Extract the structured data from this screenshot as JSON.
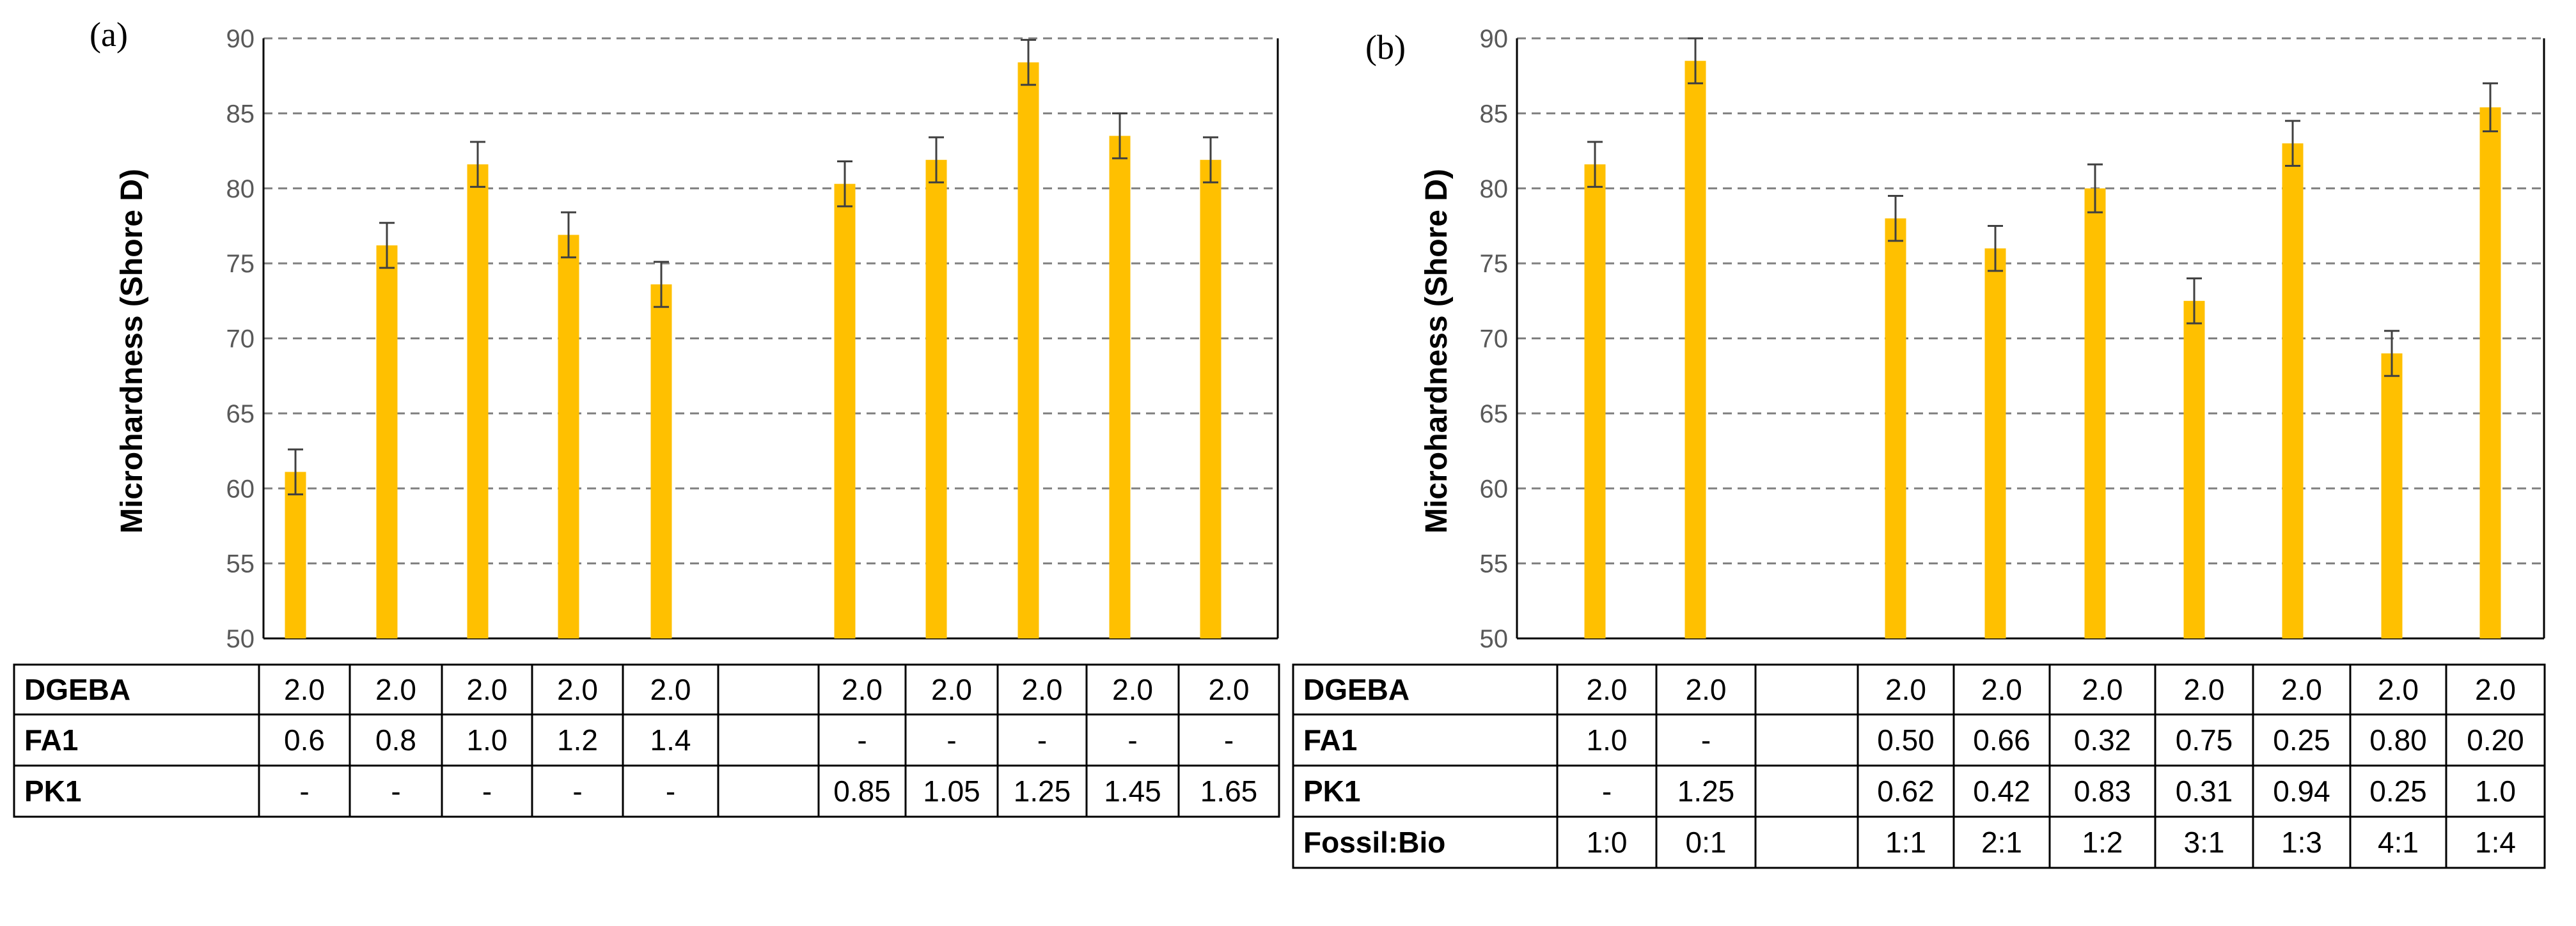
{
  "chart_data": [
    {
      "panel_label": "(a)",
      "type": "bar",
      "ylabel": "Microhardness (Shore D)",
      "ylim": [
        50,
        90
      ],
      "yticks": [
        50,
        55,
        60,
        65,
        70,
        75,
        80,
        85,
        90
      ],
      "grid": true,
      "bar_color": "#ffc000",
      "slot_count": 11,
      "bars": [
        {
          "slot": 0,
          "value": 61.1,
          "error": 1.5
        },
        {
          "slot": 1,
          "value": 76.2,
          "error": 1.5
        },
        {
          "slot": 2,
          "value": 81.6,
          "error": 1.5
        },
        {
          "slot": 3,
          "value": 76.9,
          "error": 1.5
        },
        {
          "slot": 4,
          "value": 73.6,
          "error": 1.5
        },
        {
          "slot": 6,
          "value": 80.3,
          "error": 1.5
        },
        {
          "slot": 7,
          "value": 81.9,
          "error": 1.5
        },
        {
          "slot": 8,
          "value": 88.4,
          "error": 1.5
        },
        {
          "slot": 9,
          "value": 83.5,
          "error": 1.5
        },
        {
          "slot": 10,
          "value": 81.9,
          "error": 1.5
        }
      ],
      "table": {
        "rows": [
          {
            "label": "DGEBA",
            "cells": [
              "2.0",
              "2.0",
              "2.0",
              "2.0",
              "2.0",
              "",
              "2.0",
              "2.0",
              "2.0",
              "2.0",
              "2.0"
            ]
          },
          {
            "label": "FA1",
            "cells": [
              "0.6",
              "0.8",
              "1.0",
              "1.2",
              "1.4",
              "",
              "-",
              "-",
              "-",
              "-",
              "-"
            ]
          },
          {
            "label": "PK1",
            "cells": [
              "-",
              "-",
              "-",
              "-",
              "-",
              "",
              "0.85",
              "1.05",
              "1.25",
              "1.45",
              "1.65"
            ]
          }
        ]
      }
    },
    {
      "panel_label": "(b)",
      "type": "bar",
      "ylabel": "Microhardness (Shore D)",
      "ylim": [
        50,
        90
      ],
      "yticks": [
        50,
        55,
        60,
        65,
        70,
        75,
        80,
        85,
        90
      ],
      "grid": true,
      "bar_color": "#ffc000",
      "slot_count": 10,
      "bars": [
        {
          "slot": 0,
          "value": 81.6,
          "error": 1.5
        },
        {
          "slot": 1,
          "value": 88.5,
          "error": 1.5
        },
        {
          "slot": 3,
          "value": 78.0,
          "error": 1.5
        },
        {
          "slot": 4,
          "value": 76.0,
          "error": 1.5
        },
        {
          "slot": 5,
          "value": 80.0,
          "error": 1.6
        },
        {
          "slot": 6,
          "value": 72.5,
          "error": 1.5
        },
        {
          "slot": 7,
          "value": 83.0,
          "error": 1.5
        },
        {
          "slot": 8,
          "value": 69.0,
          "error": 1.5
        },
        {
          "slot": 9,
          "value": 85.4,
          "error": 1.6
        }
      ],
      "table": {
        "rows": [
          {
            "label": "DGEBA",
            "cells": [
              "2.0",
              "2.0",
              "",
              "2.0",
              "2.0",
              "2.0",
              "2.0",
              "2.0",
              "2.0",
              "2.0"
            ]
          },
          {
            "label": "FA1",
            "cells": [
              "1.0",
              "-",
              "",
              "0.50",
              "0.66",
              "0.32",
              "0.75",
              "0.25",
              "0.80",
              "0.20"
            ]
          },
          {
            "label": "PK1",
            "cells": [
              "-",
              "1.25",
              "",
              "0.62",
              "0.42",
              "0.83",
              "0.31",
              "0.94",
              "0.25",
              "1.0"
            ]
          },
          {
            "label": "Fossil:Bio",
            "cells": [
              "1:0",
              "0:1",
              "",
              "1:1",
              "2:1",
              "1:2",
              "3:1",
              "1:3",
              "4:1",
              "1:4"
            ],
            "color": "#22b022"
          }
        ]
      }
    }
  ]
}
